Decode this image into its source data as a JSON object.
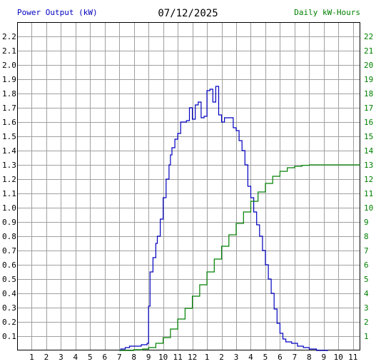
{
  "header": {
    "left_label": "Power Output (kW)",
    "date": "07/12/2025",
    "right_label": "Daily kW-Hours"
  },
  "colors": {
    "background": "#ffffff",
    "grid": "#a0a0a0",
    "power_series": "#0000c0",
    "energy_series": "#008000",
    "left_label": "#0000c0",
    "right_label": "#008000"
  },
  "chart_data": {
    "type": "line",
    "title": "07/12/2025",
    "xlabel": "",
    "ylabel": "Power Output (kW)",
    "y2label": "Daily kW-Hours",
    "x_unit": "hour of day",
    "xlim": [
      0,
      23.5
    ],
    "ylim": [
      0,
      2.3
    ],
    "y2lim": [
      0,
      23
    ],
    "x_ticks": [
      {
        "x": 1,
        "label": "1"
      },
      {
        "x": 2,
        "label": "2"
      },
      {
        "x": 3,
        "label": "3"
      },
      {
        "x": 4,
        "label": "4"
      },
      {
        "x": 5,
        "label": "5"
      },
      {
        "x": 6,
        "label": "6"
      },
      {
        "x": 7,
        "label": "7"
      },
      {
        "x": 8,
        "label": "8"
      },
      {
        "x": 9,
        "label": "9"
      },
      {
        "x": 10,
        "label": "10"
      },
      {
        "x": 11,
        "label": "11"
      },
      {
        "x": 12,
        "label": "12"
      },
      {
        "x": 13,
        "label": "1"
      },
      {
        "x": 14,
        "label": "2"
      },
      {
        "x": 15,
        "label": "3"
      },
      {
        "x": 16,
        "label": "4"
      },
      {
        "x": 17,
        "label": "5"
      },
      {
        "x": 18,
        "label": "6"
      },
      {
        "x": 19,
        "label": "7"
      },
      {
        "x": 20,
        "label": "8"
      },
      {
        "x": 21,
        "label": "9"
      },
      {
        "x": 22,
        "label": "10"
      },
      {
        "x": 23,
        "label": "11"
      }
    ],
    "y_ticks": [
      "0.1",
      "0.2",
      "0.3",
      "0.4",
      "0.5",
      "0.6",
      "0.7",
      "0.8",
      "0.9",
      "1.0",
      "1.1",
      "1.2",
      "1.3",
      "1.4",
      "1.5",
      "1.6",
      "1.7",
      "1.8",
      "1.9",
      "2.0",
      "2.1",
      "2.2"
    ],
    "y2_ticks": [
      "1",
      "2",
      "3",
      "4",
      "5",
      "6",
      "7",
      "8",
      "9",
      "10",
      "11",
      "12",
      "13",
      "14",
      "15",
      "16",
      "17",
      "18",
      "19",
      "20",
      "21",
      "22"
    ],
    "grid": true,
    "series": [
      {
        "name": "Power Output (kW)",
        "axis": "left",
        "step": true,
        "points": [
          [
            7.0,
            0.0
          ],
          [
            7.1,
            0.01
          ],
          [
            7.4,
            0.02
          ],
          [
            7.7,
            0.03
          ],
          [
            8.2,
            0.03
          ],
          [
            8.5,
            0.04
          ],
          [
            8.8,
            0.04
          ],
          [
            8.9,
            0.05
          ],
          [
            9.0,
            0.31
          ],
          [
            9.1,
            0.55
          ],
          [
            9.3,
            0.65
          ],
          [
            9.5,
            0.75
          ],
          [
            9.6,
            0.8
          ],
          [
            9.8,
            0.92
          ],
          [
            10.0,
            1.07
          ],
          [
            10.2,
            1.2
          ],
          [
            10.4,
            1.3
          ],
          [
            10.5,
            1.37
          ],
          [
            10.6,
            1.42
          ],
          [
            10.8,
            1.48
          ],
          [
            11.0,
            1.52
          ],
          [
            11.2,
            1.6
          ],
          [
            11.6,
            1.61
          ],
          [
            11.8,
            1.7
          ],
          [
            12.0,
            1.62
          ],
          [
            12.2,
            1.72
          ],
          [
            12.4,
            1.74
          ],
          [
            12.6,
            1.63
          ],
          [
            12.8,
            1.64
          ],
          [
            13.0,
            1.82
          ],
          [
            13.2,
            1.83
          ],
          [
            13.4,
            1.74
          ],
          [
            13.6,
            1.85
          ],
          [
            13.8,
            1.65
          ],
          [
            14.0,
            1.6
          ],
          [
            14.2,
            1.63
          ],
          [
            14.8,
            1.56
          ],
          [
            15.0,
            1.54
          ],
          [
            15.2,
            1.47
          ],
          [
            15.4,
            1.4
          ],
          [
            15.6,
            1.3
          ],
          [
            15.8,
            1.15
          ],
          [
            16.0,
            1.07
          ],
          [
            16.2,
            0.97
          ],
          [
            16.4,
            0.88
          ],
          [
            16.6,
            0.8
          ],
          [
            16.8,
            0.7
          ],
          [
            17.0,
            0.6
          ],
          [
            17.2,
            0.5
          ],
          [
            17.4,
            0.4
          ],
          [
            17.6,
            0.29
          ],
          [
            17.8,
            0.19
          ],
          [
            18.0,
            0.12
          ],
          [
            18.2,
            0.08
          ],
          [
            18.4,
            0.06
          ],
          [
            18.8,
            0.05
          ],
          [
            19.2,
            0.03
          ],
          [
            19.6,
            0.02
          ],
          [
            20.0,
            0.01
          ],
          [
            20.5,
            0.0
          ],
          [
            21.3,
            0.0
          ]
        ]
      },
      {
        "name": "Daily kW-Hours",
        "axis": "right",
        "step": true,
        "points": [
          [
            7.0,
            0.0
          ],
          [
            8.0,
            0.05
          ],
          [
            8.6,
            0.1
          ],
          [
            9.0,
            0.2
          ],
          [
            9.5,
            0.5
          ],
          [
            10.0,
            0.9
          ],
          [
            10.5,
            1.5
          ],
          [
            11.0,
            2.2
          ],
          [
            11.5,
            2.95
          ],
          [
            12.0,
            3.8
          ],
          [
            12.5,
            4.6
          ],
          [
            13.0,
            5.5
          ],
          [
            13.5,
            6.4
          ],
          [
            14.0,
            7.3
          ],
          [
            14.5,
            8.1
          ],
          [
            15.0,
            8.9
          ],
          [
            15.5,
            9.7
          ],
          [
            16.0,
            10.45
          ],
          [
            16.5,
            11.1
          ],
          [
            17.0,
            11.7
          ],
          [
            17.5,
            12.2
          ],
          [
            18.0,
            12.55
          ],
          [
            18.5,
            12.8
          ],
          [
            19.0,
            12.9
          ],
          [
            19.5,
            12.97
          ],
          [
            20.0,
            13.0
          ],
          [
            21.0,
            13.0
          ],
          [
            22.0,
            13.0
          ],
          [
            23.5,
            13.0
          ]
        ]
      }
    ]
  }
}
